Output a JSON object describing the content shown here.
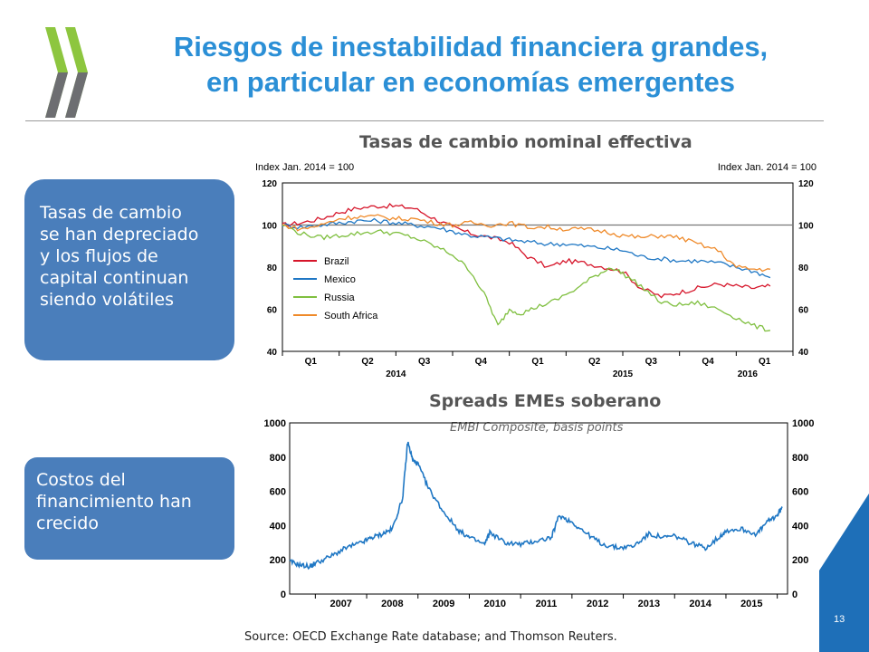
{
  "slide": {
    "title_line1": "Riesgos de inestabilidad financiera grandes,",
    "title_line2": "en particular en economías emergentes",
    "callout1": [
      "Tasas de cambio",
      "se han depreciado",
      "y los flujos de",
      "capital continuan",
      "siendo volátiles"
    ],
    "callout2": [
      "Costos del",
      "financimiento han",
      "crecido"
    ],
    "source": "Source: OECD Exchange Rate database; and Thomson  Reuters.",
    "page_number": "13",
    "colors": {
      "title": "#2b8fd6",
      "callout": "#4a7ebb",
      "corner": "#1e6fb8"
    }
  },
  "chart_data": [
    {
      "type": "line",
      "title": "Tasas de cambio nominal effectiva",
      "ylabel_left": "Index Jan. 2014 = 100",
      "ylabel_right": "Index Jan. 2014 = 100",
      "ylim": [
        40,
        120
      ],
      "yticks": [
        40,
        60,
        80,
        100,
        120
      ],
      "x_ticks": [
        "Q1",
        "Q2",
        "Q3",
        "Q4",
        "Q1",
        "Q2",
        "Q3",
        "Q4",
        "Q1"
      ],
      "x_years": [
        "2014",
        "2015",
        "2016"
      ],
      "x_range": [
        2014.0,
        2016.25
      ],
      "legend_position": "left",
      "reference_line": 100,
      "series": [
        {
          "name": "Brazil",
          "color": "#d6152a",
          "x": [
            2014.0,
            2014.08,
            2014.17,
            2014.25,
            2014.33,
            2014.42,
            2014.5,
            2014.58,
            2014.67,
            2014.75,
            2014.83,
            2014.92,
            2015.0,
            2015.08,
            2015.17,
            2015.25,
            2015.33,
            2015.42,
            2015.5,
            2015.58,
            2015.67,
            2015.75,
            2015.83,
            2015.92,
            2016.0,
            2016.08,
            2016.15
          ],
          "y": [
            100,
            101,
            103,
            106,
            108,
            109,
            109,
            108,
            103,
            99,
            96,
            94,
            92,
            85,
            80,
            83,
            82,
            80,
            78,
            70,
            66,
            68,
            70,
            72,
            71,
            70,
            71
          ]
        },
        {
          "name": "Mexico",
          "color": "#1f77c4",
          "x": [
            2014.0,
            2014.08,
            2014.17,
            2014.25,
            2014.33,
            2014.42,
            2014.5,
            2014.58,
            2014.67,
            2014.75,
            2014.83,
            2014.92,
            2015.0,
            2015.08,
            2015.17,
            2015.25,
            2015.33,
            2015.42,
            2015.5,
            2015.58,
            2015.67,
            2015.75,
            2015.83,
            2015.92,
            2016.0,
            2016.08,
            2016.15
          ],
          "y": [
            100,
            99,
            100,
            101,
            102,
            102,
            101,
            100,
            99,
            97,
            95,
            94,
            93,
            92,
            91,
            91,
            90,
            89,
            88,
            85,
            84,
            83,
            83,
            82,
            80,
            78,
            75
          ]
        },
        {
          "name": "Russia",
          "color": "#7fbf3f",
          "x": [
            2014.0,
            2014.08,
            2014.17,
            2014.25,
            2014.33,
            2014.42,
            2014.5,
            2014.58,
            2014.67,
            2014.75,
            2014.83,
            2014.9,
            2014.95,
            2015.0,
            2015.05,
            2015.12,
            2015.2,
            2015.3,
            2015.38,
            2015.45,
            2015.5,
            2015.58,
            2015.67,
            2015.75,
            2015.83,
            2015.92,
            2016.0,
            2016.08,
            2016.15
          ],
          "y": [
            100,
            96,
            94,
            95,
            96,
            97,
            96,
            94,
            90,
            86,
            78,
            65,
            52,
            60,
            58,
            61,
            64,
            70,
            76,
            80,
            77,
            71,
            63,
            62,
            63,
            60,
            56,
            52,
            50
          ]
        },
        {
          "name": "South Africa",
          "color": "#ef8a2a",
          "x": [
            2014.0,
            2014.08,
            2014.17,
            2014.25,
            2014.33,
            2014.42,
            2014.5,
            2014.58,
            2014.67,
            2014.75,
            2014.83,
            2014.92,
            2015.0,
            2015.08,
            2015.17,
            2015.25,
            2015.33,
            2015.42,
            2015.5,
            2015.58,
            2015.67,
            2015.75,
            2015.83,
            2015.92,
            2016.0,
            2016.08,
            2016.15
          ],
          "y": [
            100,
            98,
            100,
            103,
            104,
            104,
            103,
            103,
            101,
            100,
            101,
            100,
            101,
            99,
            99,
            98,
            98,
            97,
            95,
            94,
            95,
            94,
            91,
            88,
            80,
            79,
            79
          ]
        }
      ]
    },
    {
      "type": "line",
      "title": "Spreads EMEs soberano",
      "subtitle": "EMBI Composite, basis points",
      "ylim": [
        0,
        1000
      ],
      "yticks": [
        0,
        200,
        400,
        600,
        800,
        1000
      ],
      "x_ticks": [
        "2007",
        "2008",
        "2009",
        "2010",
        "2011",
        "2012",
        "2013",
        "2014",
        "2015"
      ],
      "x_range": [
        2006.5,
        2016.2
      ],
      "series": [
        {
          "name": "",
          "color": "#1f77c4",
          "x": [
            2006.5,
            2006.7,
            2006.9,
            2007.0,
            2007.3,
            2007.6,
            2007.9,
            2008.1,
            2008.3,
            2008.5,
            2008.7,
            2008.8,
            2008.9,
            2009.0,
            2009.2,
            2009.5,
            2009.8,
            2010.0,
            2010.3,
            2010.4,
            2010.7,
            2011.0,
            2011.3,
            2011.6,
            2011.75,
            2012.0,
            2012.3,
            2012.6,
            2012.9,
            2013.2,
            2013.5,
            2013.8,
            2014.0,
            2014.3,
            2014.6,
            2014.9,
            2015.0,
            2015.3,
            2015.6,
            2015.8,
            2016.0,
            2016.1
          ],
          "y": [
            190,
            170,
            160,
            180,
            220,
            270,
            300,
            330,
            350,
            380,
            560,
            890,
            780,
            760,
            620,
            480,
            370,
            330,
            290,
            360,
            300,
            290,
            310,
            330,
            460,
            420,
            350,
            290,
            270,
            280,
            350,
            330,
            340,
            300,
            270,
            340,
            370,
            380,
            350,
            420,
            460,
            510
          ]
        }
      ]
    }
  ]
}
